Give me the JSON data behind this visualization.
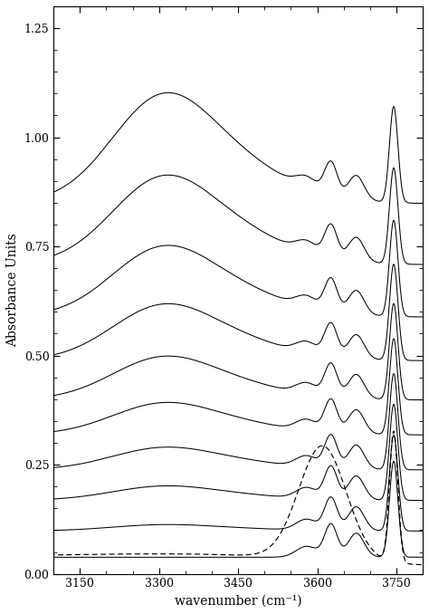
{
  "xlim": [
    3800,
    3100
  ],
  "ylim": [
    0.0,
    1.3
  ],
  "xlabel": "wavenumber (cm⁻¹)",
  "ylabel": "Absorbance Units",
  "xticks": [
    3750,
    3600,
    3450,
    3300,
    3150
  ],
  "yticks": [
    0.0,
    0.25,
    0.5,
    0.75,
    1.0,
    1.25
  ],
  "background_color": "#ffffff",
  "line_color": "#000000",
  "dashed_color": "#000000",
  "n_solid": 10,
  "offsets": [
    0.03,
    0.09,
    0.16,
    0.23,
    0.31,
    0.39,
    0.48,
    0.58,
    0.7,
    0.84
  ],
  "broad_scales": [
    0.0,
    0.04,
    0.09,
    0.14,
    0.2,
    0.27,
    0.35,
    0.44,
    0.55,
    0.68
  ]
}
